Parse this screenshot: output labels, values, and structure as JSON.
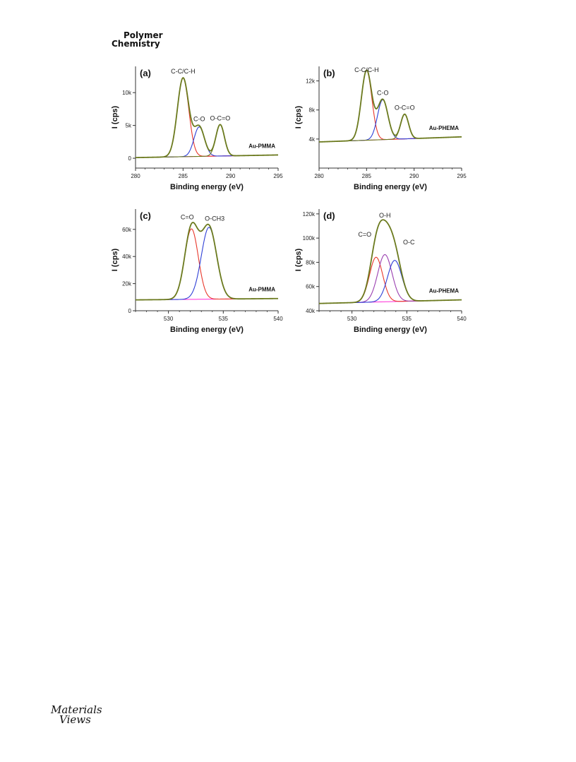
{
  "header": {
    "journal_line1": "Polymer",
    "journal_line2": "Chemistry"
  },
  "footer": {
    "publisher_logo_line1": "Materials",
    "publisher_logo_line2": "Views"
  },
  "colors": {
    "envelope": "#6b7a1e",
    "background": "#ff2bd6",
    "red": "#e8372b",
    "blue": "#2e3fd6",
    "purple": "#9a3fb0",
    "axis": "#333333"
  },
  "chart_data": [
    {
      "type": "line",
      "panel_label": "(a)",
      "sample": "Au-PMMA",
      "xlabel": "Binding energy (eV)",
      "ylabel": "I (cps)",
      "xlim": [
        280,
        295
      ],
      "ylim": [
        -1500,
        14000
      ],
      "x_ticks": [
        280,
        285,
        290,
        295
      ],
      "x_tick_labels": [
        "280",
        "285",
        "290",
        "295"
      ],
      "y_ticks": [
        0,
        5000,
        10000
      ],
      "y_tick_labels": [
        "0",
        "5k",
        "10k"
      ],
      "baseline": {
        "left": 100,
        "right": 500
      },
      "peaks": [
        {
          "label": "C-C/C-H",
          "center": 285.0,
          "height": 12000,
          "sigma": 0.6,
          "color": "#e8372b"
        },
        {
          "label": "C-O",
          "center": 286.7,
          "height": 4500,
          "sigma": 0.55,
          "color": "#2e3fd6"
        },
        {
          "label": "O-C=O",
          "center": 288.9,
          "height": 4800,
          "sigma": 0.45,
          "color": "#6b7a1e"
        }
      ]
    },
    {
      "type": "line",
      "panel_label": "(b)",
      "sample": "Au-PHEMA",
      "xlabel": "Binding energy (eV)",
      "ylabel": "I (cps)",
      "xlim": [
        280,
        295
      ],
      "ylim": [
        0,
        14000
      ],
      "x_ticks": [
        280,
        285,
        290,
        295
      ],
      "x_tick_labels": [
        "280",
        "285",
        "290",
        "295"
      ],
      "y_ticks": [
        4000,
        8000,
        12000
      ],
      "y_tick_labels": [
        "4k",
        "8k",
        "12k"
      ],
      "baseline": {
        "left": 3600,
        "right": 4300
      },
      "peaks": [
        {
          "label": "C-C/C-H",
          "center": 285.0,
          "height": 9600,
          "sigma": 0.55,
          "color": "#e8372b"
        },
        {
          "label": "C-O",
          "center": 286.7,
          "height": 5500,
          "sigma": 0.55,
          "color": "#2e3fd6"
        },
        {
          "label": "O-C=O",
          "center": 289.0,
          "height": 3400,
          "sigma": 0.42,
          "color": "#6b7a1e"
        }
      ]
    },
    {
      "type": "line",
      "panel_label": "(c)",
      "sample": "Au-PMMA",
      "xlabel": "Binding energy (eV)",
      "ylabel": "I (cps)",
      "xlim": [
        527,
        540
      ],
      "ylim": [
        0,
        75000
      ],
      "x_ticks": [
        530,
        535,
        540
      ],
      "x_tick_labels": [
        "530",
        "535",
        "540"
      ],
      "y_ticks": [
        0,
        20000,
        40000,
        60000
      ],
      "y_tick_labels": [
        "0",
        "20k",
        "40k",
        "60k"
      ],
      "baseline": {
        "left": 8000,
        "right": 9000
      },
      "peaks": [
        {
          "label": "C=O",
          "center": 532.1,
          "height": 52000,
          "sigma": 0.62,
          "color": "#e8372b"
        },
        {
          "label": "O-CH3",
          "center": 533.7,
          "height": 53000,
          "sigma": 0.7,
          "color": "#2e3fd6"
        }
      ]
    },
    {
      "type": "line",
      "panel_label": "(d)",
      "sample": "Au-PHEMA",
      "xlabel": "Binding energy (eV)",
      "ylabel": "I (cps)",
      "xlim": [
        527,
        540
      ],
      "ylim": [
        40000,
        124000
      ],
      "x_ticks": [
        530,
        535,
        540
      ],
      "x_tick_labels": [
        "530",
        "535",
        "540"
      ],
      "y_ticks": [
        40000,
        60000,
        80000,
        100000,
        120000
      ],
      "y_tick_labels": [
        "40k",
        "60k",
        "80k",
        "100k",
        "120k"
      ],
      "baseline": {
        "left": 46000,
        "right": 49000
      },
      "peaks": [
        {
          "label": "C=O",
          "center": 532.2,
          "height": 37000,
          "sigma": 0.6,
          "color": "#e8372b"
        },
        {
          "label": "O-H",
          "center": 533.0,
          "height": 39000,
          "sigma": 0.65,
          "color": "#9a3fb0"
        },
        {
          "label": "O-C",
          "center": 533.9,
          "height": 34000,
          "sigma": 0.65,
          "color": "#2e3fd6"
        }
      ]
    }
  ]
}
